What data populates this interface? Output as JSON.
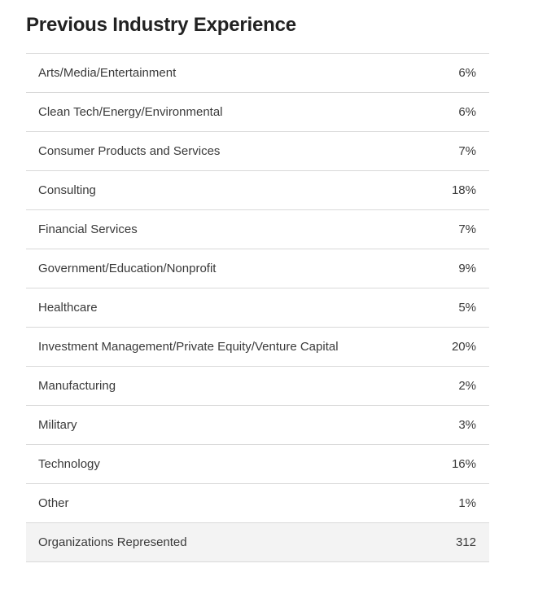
{
  "title": "Previous Industry Experience",
  "rows": [
    {
      "label": "Arts/Media/Entertainment",
      "value": "6%"
    },
    {
      "label": "Clean Tech/Energy/Environmental",
      "value": "6%"
    },
    {
      "label": "Consumer Products and Services",
      "value": "7%"
    },
    {
      "label": "Consulting",
      "value": "18%"
    },
    {
      "label": "Financial Services",
      "value": "7%"
    },
    {
      "label": "Government/Education/Nonprofit",
      "value": "9%"
    },
    {
      "label": "Healthcare",
      "value": "5%"
    },
    {
      "label": "Investment Management/Private Equity/Venture Capital",
      "value": "20%"
    },
    {
      "label": "Manufacturing",
      "value": "2%"
    },
    {
      "label": "Military",
      "value": "3%"
    },
    {
      "label": "Technology",
      "value": "16%"
    },
    {
      "label": "Other",
      "value": "1%"
    }
  ],
  "total": {
    "label": "Organizations Represented",
    "value": "312"
  }
}
